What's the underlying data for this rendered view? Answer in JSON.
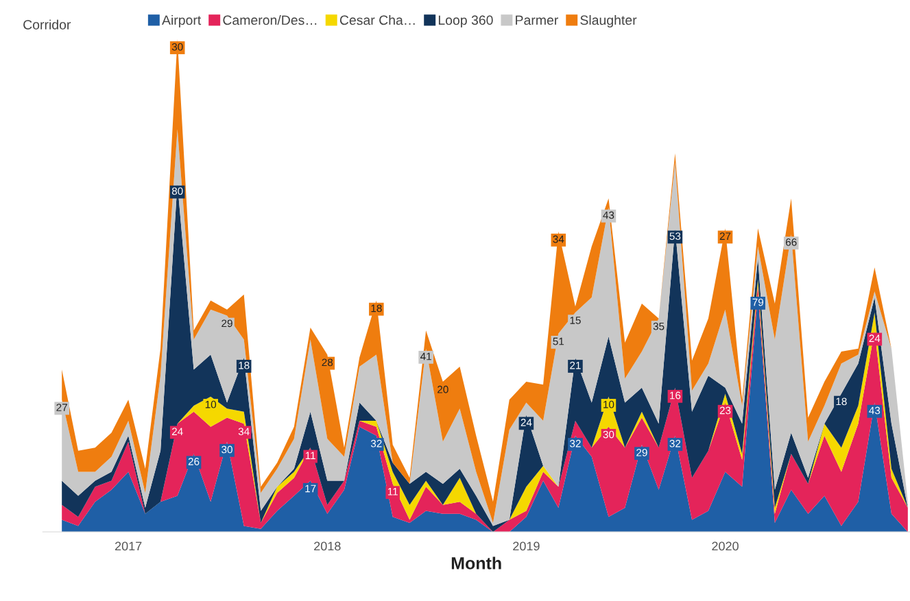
{
  "chart_data": {
    "type": "area",
    "stacked": true,
    "xlabel": "Month",
    "legend_title": "Corridor",
    "legend": "top left",
    "grid": false,
    "tick_labels": "x",
    "x": [
      "2016-09",
      "2016-10",
      "2016-11",
      "2016-12",
      "2017-01",
      "2017-02",
      "2017-03",
      "2017-04",
      "2017-05",
      "2017-06",
      "2017-07",
      "2017-08",
      "2017-09",
      "2017-10",
      "2017-11",
      "2017-12",
      "2018-01",
      "2018-02",
      "2018-03",
      "2018-04",
      "2018-05",
      "2018-06",
      "2018-07",
      "2018-08",
      "2018-09",
      "2018-10",
      "2018-11",
      "2018-12",
      "2019-01",
      "2019-02",
      "2019-03",
      "2019-04",
      "2019-05",
      "2019-06",
      "2019-07",
      "2019-08",
      "2019-09",
      "2019-10",
      "2019-11",
      "2019-12",
      "2020-01",
      "2020-02",
      "2020-03",
      "2020-04",
      "2020-05",
      "2020-06",
      "2020-07",
      "2020-08",
      "2020-09",
      "2020-10",
      "2020-11",
      "2020-12"
    ],
    "xlim": [
      "2016-07-28",
      "2020-12-05"
    ],
    "xticks": [
      "2017",
      "2018",
      "2019",
      "2020"
    ],
    "series": [
      {
        "name": "Airport",
        "color": "#1f5fa6",
        "values": [
          4,
          2,
          10,
          14,
          20,
          6,
          10,
          12,
          26,
          10,
          30,
          2,
          1,
          7,
          12,
          17,
          6,
          14,
          35,
          32,
          5,
          3,
          7,
          6,
          6,
          4,
          0,
          0,
          5,
          17,
          8,
          32,
          25,
          5,
          8,
          29,
          14,
          32,
          4,
          7,
          20,
          15,
          79,
          3,
          14,
          6,
          12,
          2,
          10,
          43,
          6,
          0
        ],
        "value_labels": [
          null,
          null,
          null,
          null,
          null,
          null,
          null,
          null,
          "26",
          null,
          "30",
          null,
          null,
          null,
          null,
          "17",
          null,
          null,
          null,
          "32",
          null,
          null,
          null,
          null,
          null,
          null,
          null,
          null,
          null,
          null,
          null,
          "32",
          null,
          null,
          null,
          "29",
          null,
          "32",
          null,
          null,
          null,
          null,
          "79",
          null,
          null,
          null,
          null,
          null,
          null,
          "43",
          null,
          null
        ]
      },
      {
        "name": "Cameron/Des…",
        "color": "#e4245a",
        "values": [
          5,
          3,
          5,
          3,
          10,
          0,
          0,
          24,
          14,
          25,
          8,
          34,
          2,
          6,
          6,
          11,
          3,
          3,
          2,
          3,
          11,
          1,
          8,
          3,
          4,
          2,
          0,
          4,
          2,
          3,
          7,
          5,
          3,
          30,
          20,
          9,
          14,
          16,
          14,
          20,
          23,
          9,
          3,
          3,
          12,
          10,
          20,
          18,
          26,
          24,
          12,
          8
        ],
        "value_labels": [
          null,
          null,
          null,
          null,
          null,
          null,
          null,
          "24",
          null,
          null,
          null,
          "34",
          null,
          null,
          null,
          "11",
          null,
          null,
          null,
          null,
          "11",
          null,
          null,
          null,
          null,
          null,
          null,
          null,
          null,
          null,
          null,
          null,
          null,
          "30",
          null,
          null,
          null,
          "16",
          null,
          null,
          "23",
          null,
          null,
          null,
          null,
          null,
          null,
          null,
          null,
          "24",
          null,
          null
        ]
      },
      {
        "name": "Cesar Cha…",
        "color": "#f5d800",
        "values": [
          0,
          0,
          0,
          0,
          0,
          0,
          0,
          0,
          2,
          10,
          3,
          4,
          0,
          2,
          2,
          0,
          0,
          0,
          0,
          2,
          4,
          5,
          2,
          0,
          8,
          0,
          0,
          0,
          8,
          2,
          0,
          0,
          0,
          10,
          0,
          2,
          0,
          0,
          0,
          0,
          3,
          2,
          2,
          2,
          0,
          0,
          4,
          8,
          6,
          6,
          3,
          0
        ],
        "value_labels": [
          null,
          null,
          null,
          null,
          null,
          null,
          null,
          null,
          null,
          "10",
          null,
          null,
          null,
          null,
          null,
          null,
          null,
          null,
          null,
          null,
          null,
          null,
          null,
          null,
          null,
          null,
          null,
          null,
          null,
          null,
          null,
          null,
          null,
          "10",
          null,
          null,
          null,
          null,
          null,
          null,
          null,
          null,
          null,
          null,
          null,
          null,
          null,
          null,
          null,
          null,
          null,
          null
        ]
      },
      {
        "name": "Loop 360",
        "color": "#12345a",
        "values": [
          8,
          7,
          2,
          3,
          2,
          2,
          17,
          80,
          12,
          14,
          2,
          18,
          4,
          0,
          1,
          12,
          8,
          0,
          6,
          0,
          3,
          7,
          3,
          7,
          3,
          6,
          2,
          0,
          24,
          0,
          0,
          21,
          15,
          20,
          15,
          8,
          8,
          53,
          22,
          25,
          2,
          10,
          7,
          6,
          7,
          2,
          0,
          18,
          14,
          5,
          15,
          0
        ],
        "value_labels": [
          null,
          null,
          null,
          null,
          null,
          null,
          null,
          "80",
          null,
          null,
          null,
          "18",
          null,
          null,
          null,
          null,
          null,
          null,
          null,
          null,
          null,
          null,
          null,
          null,
          null,
          null,
          null,
          null,
          "24",
          null,
          null,
          "21",
          null,
          null,
          null,
          null,
          null,
          "53",
          null,
          null,
          null,
          null,
          null,
          null,
          null,
          null,
          null,
          "18",
          null,
          null,
          null,
          null
        ]
      },
      {
        "name": "Parmer",
        "color": "#c8c8c8",
        "values": [
          27,
          8,
          3,
          5,
          5,
          5,
          25,
          18,
          10,
          15,
          29,
          6,
          6,
          6,
          10,
          24,
          14,
          8,
          12,
          22,
          0,
          0,
          41,
          14,
          20,
          8,
          1,
          30,
          4,
          15,
          51,
          15,
          35,
          43,
          8,
          12,
          35,
          22,
          7,
          4,
          26,
          6,
          4,
          50,
          66,
          12,
          6,
          10,
          3,
          2,
          25,
          2
        ],
        "value_labels": [
          "27",
          null,
          null,
          null,
          null,
          null,
          null,
          null,
          null,
          null,
          "29",
          null,
          null,
          null,
          null,
          null,
          null,
          null,
          null,
          null,
          null,
          null,
          "41",
          null,
          null,
          null,
          null,
          null,
          null,
          null,
          "51",
          "15",
          null,
          "43",
          null,
          null,
          "35",
          null,
          null,
          null,
          null,
          null,
          null,
          null,
          "66",
          null,
          null,
          null,
          null,
          null,
          null,
          null
        ]
      },
      {
        "name": "Slaughter",
        "color": "#ef7d0f",
        "values": [
          10,
          7,
          8,
          8,
          7,
          8,
          9,
          30,
          3,
          3,
          2,
          15,
          2,
          2,
          4,
          4,
          28,
          3,
          3,
          18,
          6,
          2,
          6,
          20,
          14,
          12,
          7,
          10,
          7,
          12,
          34,
          2,
          17,
          3,
          12,
          16,
          0,
          3,
          10,
          15,
          27,
          2,
          6,
          12,
          12,
          8,
          8,
          4,
          2,
          8,
          0,
          0
        ],
        "value_labels": [
          null,
          null,
          null,
          null,
          null,
          null,
          null,
          "30",
          null,
          null,
          null,
          null,
          null,
          null,
          null,
          null,
          "28",
          null,
          null,
          "18",
          null,
          null,
          null,
          "20",
          null,
          null,
          null,
          null,
          null,
          null,
          "34",
          null,
          null,
          null,
          null,
          null,
          null,
          null,
          null,
          null,
          "27",
          null,
          null,
          null,
          null,
          null,
          null,
          null,
          null,
          null,
          null,
          null
        ]
      }
    ]
  }
}
